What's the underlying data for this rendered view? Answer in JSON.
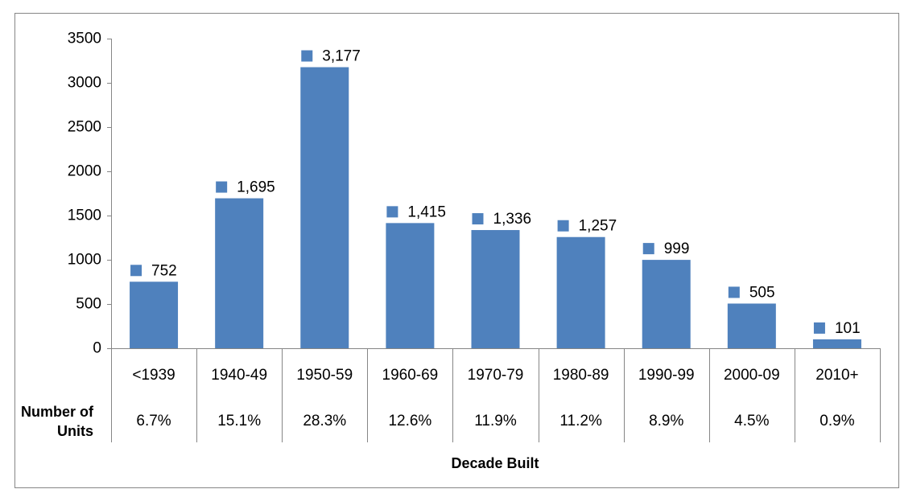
{
  "chart_data": {
    "type": "bar",
    "x_label": "Decade Built",
    "categories": [
      "<1939",
      "1940-49",
      "1950-59",
      "1960-69",
      "1970-79",
      "1980-89",
      "1990-99",
      "2000-09",
      "2010+"
    ],
    "values": [
      752,
      1695,
      3177,
      1415,
      1336,
      1257,
      999,
      505,
      101
    ],
    "value_labels": [
      "752",
      "1,695",
      "3,177",
      "1,415",
      "1,336",
      "1,257",
      "999",
      "505",
      "101"
    ],
    "color": "#4f81bd",
    "ylim": [
      0,
      3500
    ],
    "yticks": [
      0,
      500,
      1000,
      1500,
      2000,
      2500,
      3000,
      3500
    ],
    "grid": false,
    "table_row_label": "Number of Units",
    "table_row": [
      "6.7%",
      "15.1%",
      "28.3%",
      "12.6%",
      "11.9%",
      "11.2%",
      "8.9%",
      "4.5%",
      "0.9%"
    ]
  }
}
